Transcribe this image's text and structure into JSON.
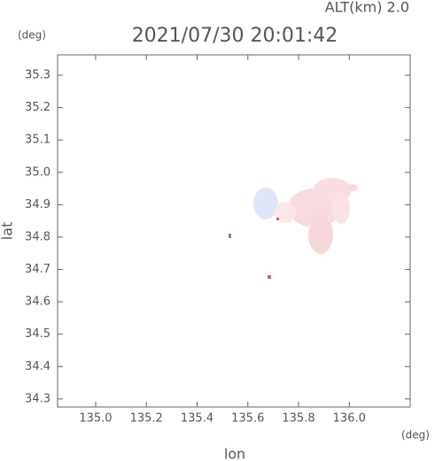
{
  "chart_data": {
    "type": "map",
    "title": "2021/07/30 20:01:42",
    "annotation": "ALT(km) 2.0",
    "xlabel": "lon",
    "ylabel": "lat",
    "xunit": "(deg)",
    "yunit": "(deg)",
    "xlim": [
      134.85,
      136.24
    ],
    "ylim": [
      34.275,
      35.363
    ],
    "xticks": [
      {
        "value": 135,
        "label": "135.0"
      },
      135.2,
      135.4,
      135.6,
      135.8,
      {
        "value": 136,
        "label": "136.0"
      }
    ],
    "yticks": [
      34.3,
      34.4,
      34.5,
      34.6,
      34.7,
      34.8,
      34.9,
      {
        "value": 35,
        "label": "35.0"
      },
      35.1,
      35.2,
      35.3
    ]
  }
}
